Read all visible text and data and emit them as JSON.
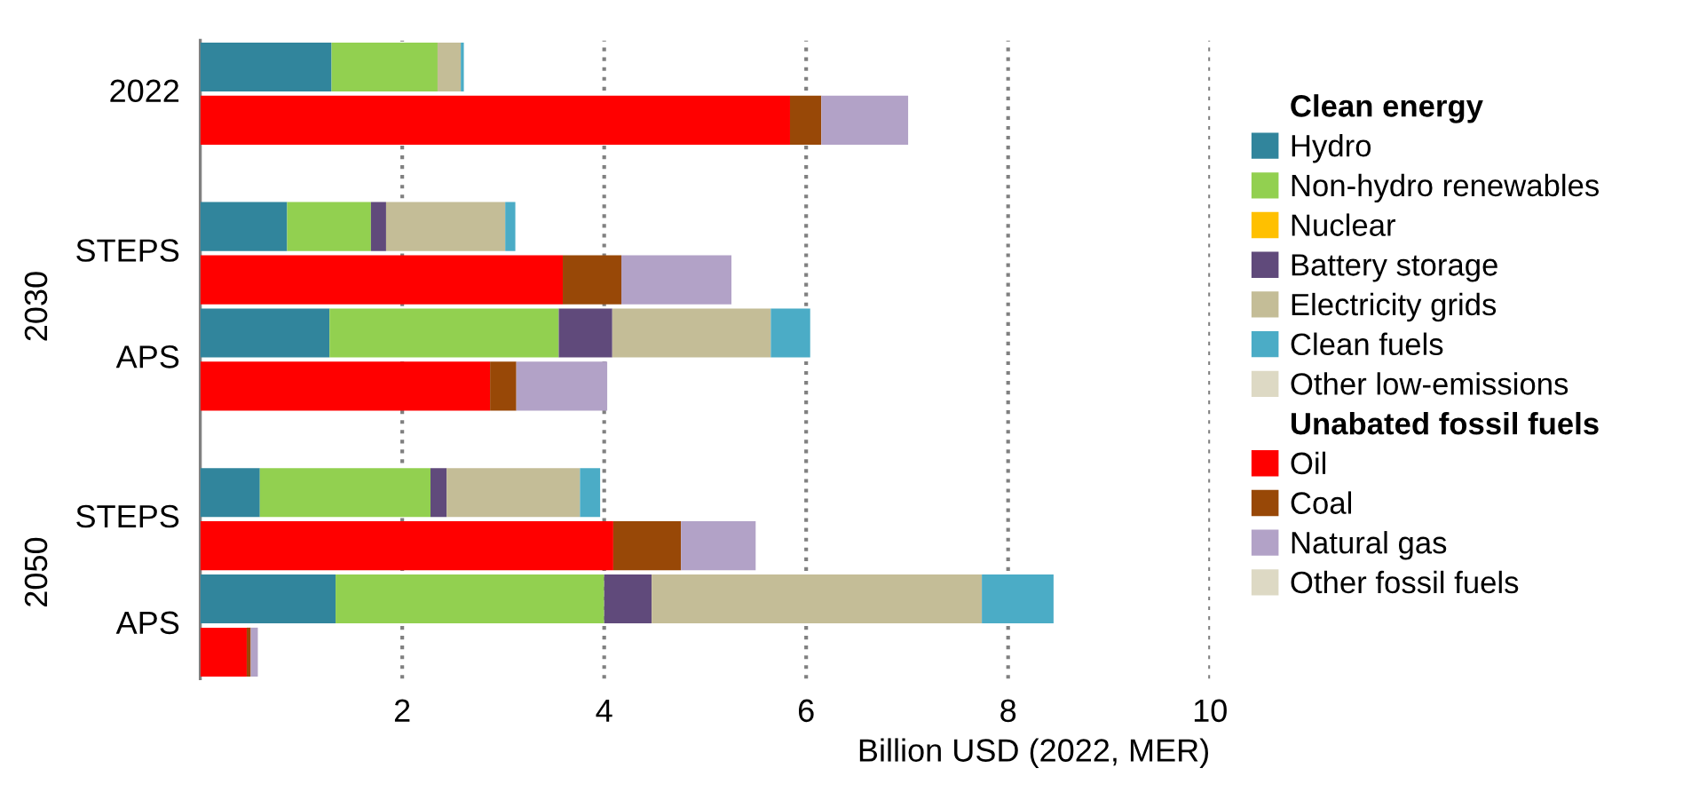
{
  "chart_data": {
    "type": "bar",
    "orientation": "horizontal",
    "stacked": true,
    "xlabel": "Billion USD (2022, MER)",
    "categories": [
      "2022",
      null,
      null,
      "STEPS",
      null,
      "APS",
      null,
      null,
      "STEPS",
      null,
      "APS",
      null
    ],
    "annotations": [
      "2030",
      "2050",
      "Clean energy",
      "Unabated fossil fuels"
    ],
    "xlim": [
      0,
      10
    ],
    "xticks": [
      2,
      4,
      6,
      8,
      10
    ],
    "grid": "x",
    "legend": "right",
    "series": [
      {
        "name": "Hydro",
        "color": "#31859c",
        "values": [
          1.3,
          null,
          null,
          0.86,
          null,
          1.28,
          null,
          null,
          0.59,
          null,
          1.34,
          null
        ]
      },
      {
        "name": "Non-hydro renewables",
        "color": "#92d050",
        "values": [
          1.05,
          null,
          null,
          0.83,
          null,
          2.27,
          null,
          null,
          1.69,
          null,
          2.66,
          null
        ]
      },
      {
        "name": "Nuclear",
        "color": "#ffc000",
        "values": [
          0,
          null,
          null,
          0,
          null,
          0,
          null,
          null,
          0,
          null,
          0,
          null
        ]
      },
      {
        "name": "Battery storage",
        "color": "#604a7b",
        "values": [
          0,
          null,
          null,
          0.15,
          null,
          0.53,
          null,
          null,
          0.16,
          null,
          0.47,
          null
        ]
      },
      {
        "name": "Electricity grids",
        "color": "#c4bd97",
        "values": [
          0.23,
          null,
          null,
          1.18,
          null,
          1.57,
          null,
          null,
          1.32,
          null,
          3.27,
          null
        ]
      },
      {
        "name": "Clean fuels",
        "color": "#4bacc6",
        "values": [
          0.03,
          null,
          null,
          0.1,
          null,
          0.39,
          null,
          null,
          0.2,
          null,
          0.71,
          null
        ]
      },
      {
        "name": "Other low-emissions",
        "color": "#ddd9c4",
        "values": [
          0,
          null,
          null,
          0,
          null,
          0,
          null,
          null,
          0,
          null,
          0,
          null
        ]
      },
      {
        "name": "Oil",
        "color": "#ff0000",
        "values": [
          null,
          5.84,
          null,
          null,
          3.59,
          null,
          2.87,
          null,
          null,
          4.09,
          null,
          0.46
        ]
      },
      {
        "name": "Coal",
        "color": "#984807",
        "values": [
          null,
          0.31,
          null,
          null,
          0.58,
          null,
          0.26,
          null,
          null,
          0.67,
          null,
          0.04
        ]
      },
      {
        "name": "Natural gas",
        "color": "#b2a2c7",
        "values": [
          null,
          0.86,
          null,
          null,
          1.09,
          null,
          0.9,
          null,
          null,
          0.74,
          null,
          0.07
        ]
      },
      {
        "name": "Other fossil fuels",
        "color": "#ddd9c4",
        "values": [
          null,
          0,
          null,
          null,
          0,
          null,
          0,
          null,
          null,
          0,
          null,
          0
        ]
      }
    ]
  }
}
